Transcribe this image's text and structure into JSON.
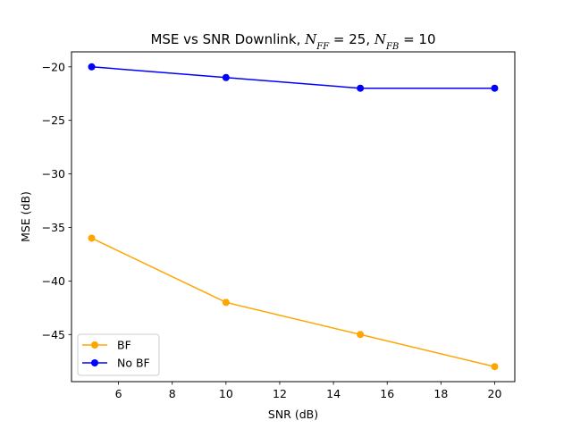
{
  "chart_data": {
    "type": "line",
    "title": {
      "prefix": "MSE vs SNR Downlink, ",
      "n_symbol": "N",
      "ff_sub": "FF",
      "ff_eq": " = 25, ",
      "fb_sub": "FB",
      "fb_eq": " = 10"
    },
    "xlabel": "SNR (dB)",
    "ylabel": "MSE (dB)",
    "xlim": [
      4.25,
      20.75
    ],
    "ylim": [
      -49.4,
      -18.6
    ],
    "xticks": [
      6,
      8,
      10,
      12,
      14,
      16,
      18,
      20
    ],
    "yticks": [
      -45,
      -40,
      -35,
      -30,
      -25,
      -20
    ],
    "grid": false,
    "legend_position": "lower left",
    "series": [
      {
        "name": "BF",
        "color": "#FFA500",
        "marker": "circle",
        "x": [
          5,
          10,
          15,
          20
        ],
        "y": [
          -36,
          -42,
          -45,
          -48
        ]
      },
      {
        "name": "No BF",
        "color": "#0000FF",
        "marker": "circle",
        "x": [
          5,
          10,
          15,
          20
        ],
        "y": [
          -20,
          -21,
          -22,
          -22
        ]
      }
    ]
  }
}
